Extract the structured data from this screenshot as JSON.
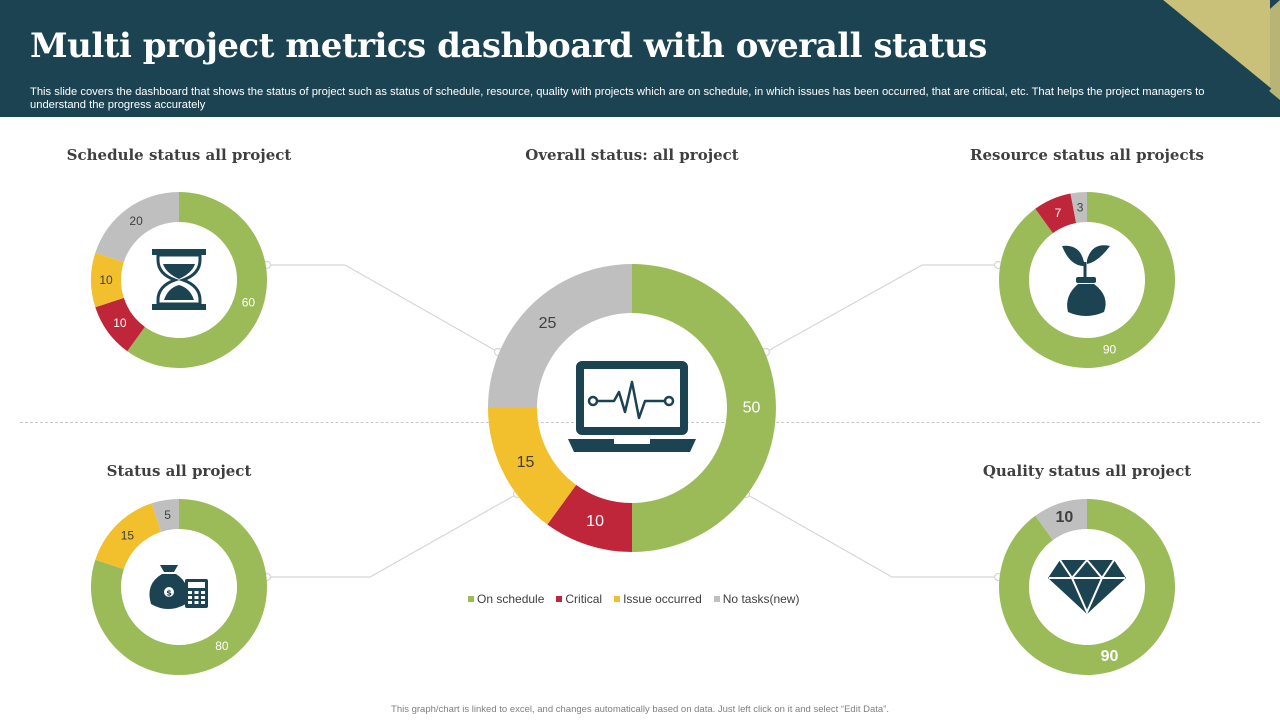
{
  "header": {
    "title": "Multi  project metrics dashboard with overall status",
    "subtitle": "This slide covers the dashboard that shows the status of project such as status of schedule, resource, quality with projects which are on schedule, in which issues has been occurred, that are critical, etc.  That helps the project managers to understand the progress accurately"
  },
  "colors": {
    "header_bg": "#1c4351",
    "accent_gold": "#c9c17a",
    "on_schedule": "#9bbb59",
    "critical": "#c0263a",
    "issue_occurred": "#f2bf2d",
    "no_tasks": "#bfbfbf",
    "icon": "#1c4351"
  },
  "legend": {
    "on_schedule": "On schedule",
    "critical": "Critical",
    "issue_occurred": "Issue occurred",
    "no_tasks": "No tasks(new)"
  },
  "chart_data": [
    {
      "type": "pie",
      "id": "schedule",
      "title": "Schedule status all project",
      "icon": "hourglass-icon",
      "categories": [
        "On schedule",
        "Critical",
        "Issue occurred",
        "No tasks(new)"
      ],
      "values": [
        60,
        10,
        10,
        20
      ]
    },
    {
      "type": "pie",
      "id": "overall",
      "title": "Overall status: all project",
      "icon": "laptop-heartbeat-icon",
      "categories": [
        "On schedule",
        "Critical",
        "Issue occurred",
        "No tasks(new)"
      ],
      "values": [
        50,
        10,
        15,
        25
      ]
    },
    {
      "type": "pie",
      "id": "resource",
      "title": "Resource status all projects",
      "icon": "money-plant-icon",
      "categories": [
        "On schedule",
        "Critical",
        "No tasks(new)"
      ],
      "values": [
        90,
        7,
        3
      ]
    },
    {
      "type": "pie",
      "id": "status",
      "title": "Status all project",
      "icon": "money-bag-calculator-icon",
      "categories": [
        "On schedule",
        "Issue occurred",
        "No tasks(new)"
      ],
      "values": [
        80,
        15,
        5
      ]
    },
    {
      "type": "pie",
      "id": "quality",
      "title": "Quality status all project",
      "icon": "diamond-icon",
      "categories": [
        "On schedule",
        "No tasks(new)"
      ],
      "values": [
        90,
        10
      ]
    }
  ],
  "footer": "This graph/chart is linked to excel, and changes automatically based on data. Just left click on it and select “Edit Data”."
}
